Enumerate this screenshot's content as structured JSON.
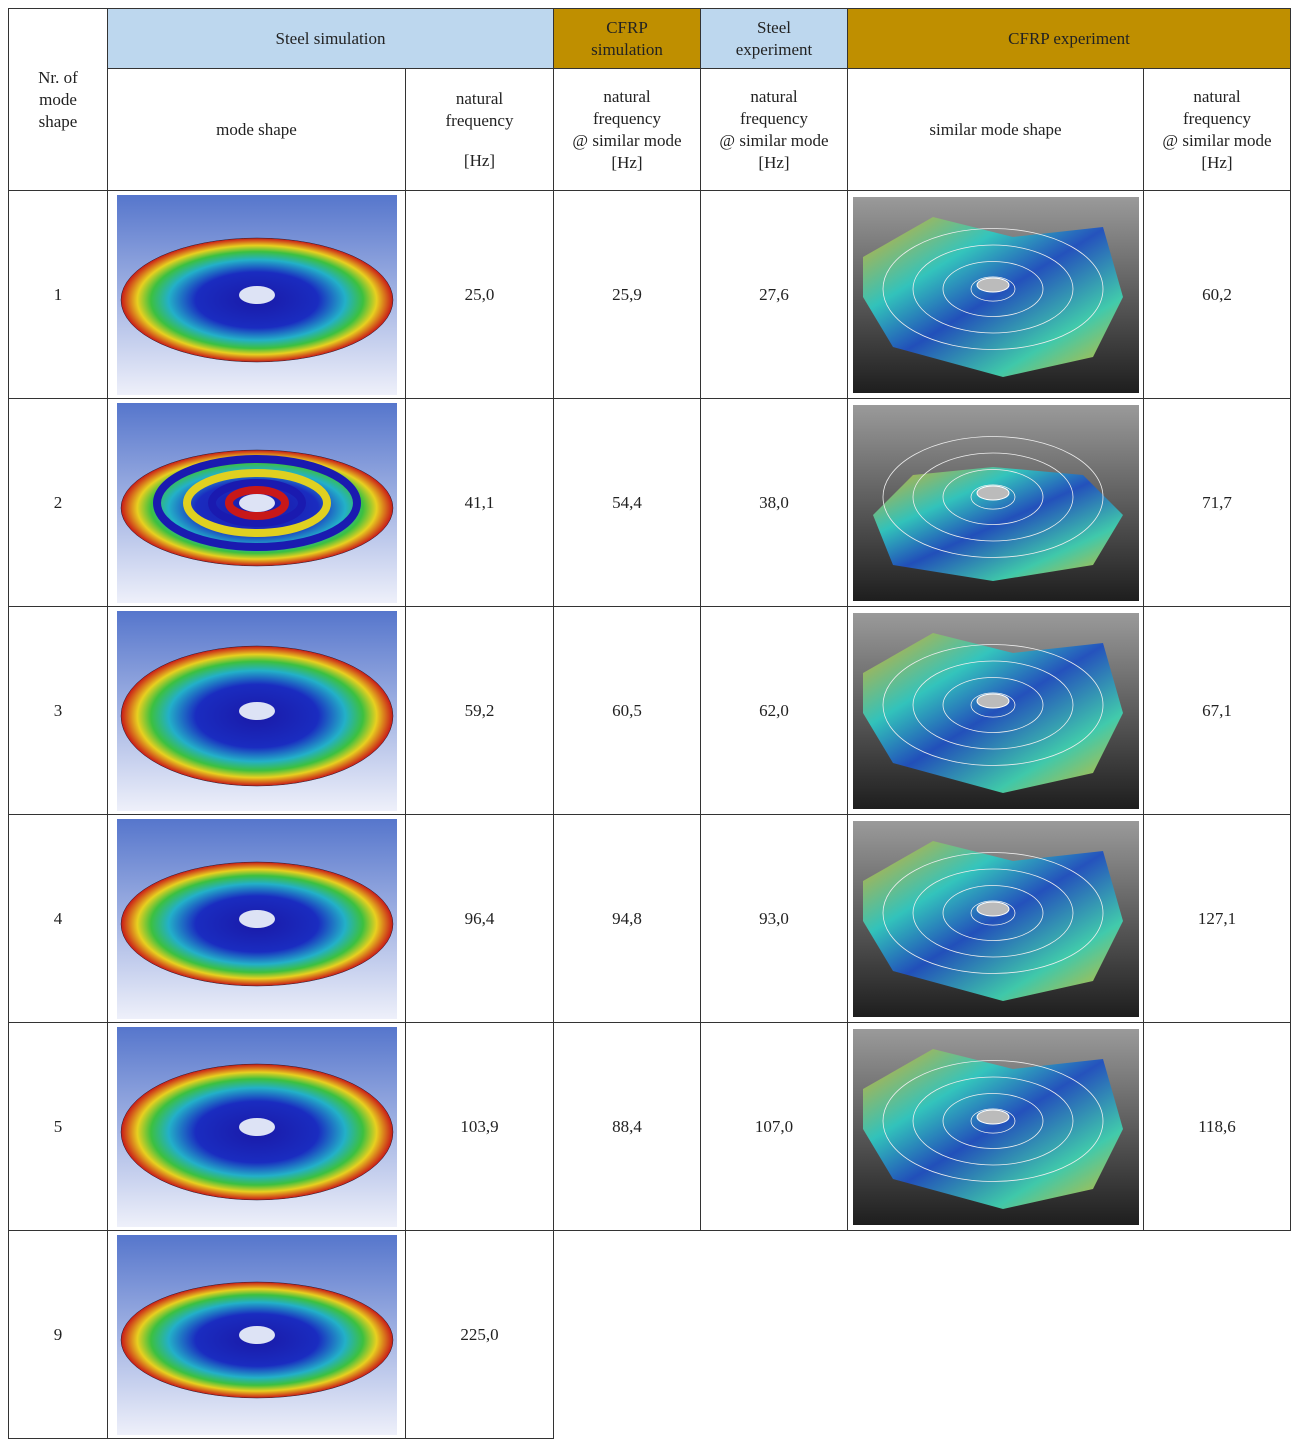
{
  "table": {
    "corner": {
      "lines": [
        "Nr. of",
        "mode",
        "shape"
      ]
    },
    "group_headers": [
      {
        "lines": [
          "Steel simulation"
        ]
      },
      {
        "lines": [
          "CFRP",
          "simulation"
        ]
      },
      {
        "lines": [
          "Steel",
          "experiment"
        ]
      },
      {
        "lines": [
          "CFRP experiment"
        ]
      }
    ],
    "sub_headers": [
      {
        "lines": [
          "mode shape"
        ]
      },
      {
        "lines": [
          "natural",
          "frequency",
          "[Hz]"
        ]
      },
      {
        "lines": [
          "natural",
          "frequency",
          "@ similar mode",
          "[Hz]"
        ]
      },
      {
        "lines": [
          "natural",
          "frequency",
          "@ similar mode",
          "[Hz]"
        ]
      },
      {
        "lines": [
          "similar mode shape"
        ]
      },
      {
        "lines": [
          "natural",
          "frequency",
          "@ similar mode",
          "[Hz]"
        ]
      }
    ],
    "rows": [
      {
        "mode": "1",
        "steel_sim": "25,0",
        "cfrp_sim": "25,9",
        "steel_exp": "27,6",
        "cfrp_exp": "60,2"
      },
      {
        "mode": "2",
        "steel_sim": "41,1",
        "cfrp_sim": "54,4",
        "steel_exp": "38,0",
        "cfrp_exp": "71,7"
      },
      {
        "mode": "3",
        "steel_sim": "59,2",
        "cfrp_sim": "60,5",
        "steel_exp": "62,0",
        "cfrp_exp": "67,1"
      },
      {
        "mode": "4",
        "steel_sim": "96,4",
        "cfrp_sim": "94,8",
        "steel_exp": "93,0",
        "cfrp_exp": "127,1"
      },
      {
        "mode": "5",
        "steel_sim": "103,9",
        "cfrp_sim": "88,4",
        "steel_exp": "107,0",
        "cfrp_exp": "118,6"
      },
      {
        "mode": "9",
        "steel_sim": "225,0"
      }
    ]
  }
}
